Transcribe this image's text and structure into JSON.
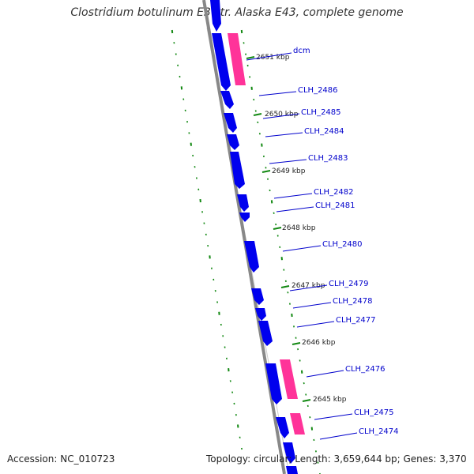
{
  "title": "Clostridium botulinum E3 str. Alaska E43, complete genome",
  "accession": "Accession: NC_010723",
  "summary": "Topology: circular; Length: 3,659,644 bp; Genes: 3,370",
  "colors": {
    "forward_cds": "#0000ee",
    "rna_gene": "#ff3399",
    "backbone": "#888888",
    "tick": "#118811",
    "label": "#0000cc"
  },
  "kbp_labels": [
    "2651 kbp",
    "2650 kbp",
    "2649 kbp",
    "2648 kbp",
    "2647 kbp",
    "2646 kbp",
    "2645 kbp"
  ],
  "gene_labels": [
    "dcm",
    "CLH_2486",
    "CLH_2485",
    "CLH_2484",
    "CLH_2483",
    "CLH_2482",
    "CLH_2481",
    "CLH_2480",
    "CLH_2479",
    "CLH_2478",
    "CLH_2477",
    "CLH_2476",
    "CLH_2475",
    "CLH_2474"
  ]
}
